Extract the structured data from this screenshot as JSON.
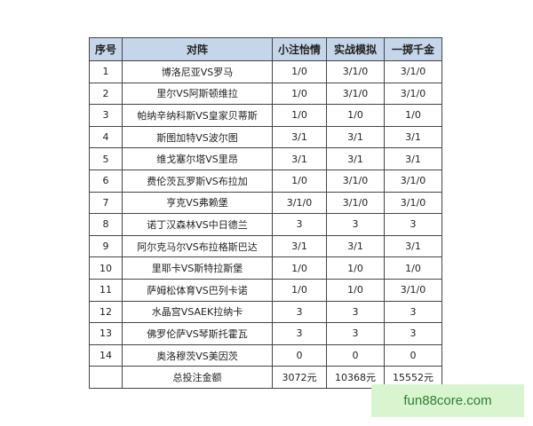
{
  "headers": [
    "序号",
    "对阵",
    "小注怡情",
    "实战模拟",
    "一掷千金"
  ],
  "rows": [
    [
      "1",
      "博洛尼亚VS罗马",
      "1/0",
      "3/1/0",
      "3/1/0"
    ],
    [
      "2",
      "里尔VS阿斯顿维拉",
      "1/0",
      "3/1/0",
      "3/1/0"
    ],
    [
      "3",
      "帕纳辛纳科斯VS皇家贝蒂斯",
      "1/0",
      "1/0",
      "1/0"
    ],
    [
      "4",
      "斯图加特VS波尔图",
      "3/1",
      "3/1",
      "3/1"
    ],
    [
      "5",
      "维戈塞尔塔VS里昂",
      "3/1",
      "3/1",
      "3/1"
    ],
    [
      "6",
      "费伦茨瓦罗斯VS布拉加",
      "1/0",
      "3/1/0",
      "3/1/0"
    ],
    [
      "7",
      "亨克VS弗赖堡",
      "3/1/0",
      "3/1/0",
      "3/1/0"
    ],
    [
      "8",
      "诺丁汉森林VS中日德兰",
      "3",
      "3",
      "3"
    ],
    [
      "9",
      "阿尔克马尔VS布拉格斯巴达",
      "3/1",
      "3/1",
      "3/1"
    ],
    [
      "10",
      "里耶卡VS斯特拉斯堡",
      "1/0",
      "1/0",
      "1/0"
    ],
    [
      "11",
      "萨姆松体育VS巴列卡诺",
      "1/0",
      "1/0",
      "3/1/0"
    ],
    [
      "12",
      "水晶宫VSAEK拉纳卡",
      "3",
      "3",
      "3"
    ],
    [
      "13",
      "佛罗伦萨VS琴斯托霍瓦",
      "3",
      "3",
      "3"
    ],
    [
      "14",
      "奥洛穆茨VS美因茨",
      "0",
      "0",
      "0"
    ]
  ],
  "total": [
    "",
    "总投注金额",
    "3072元",
    "10368元",
    "15552元"
  ],
  "watermark": "fun88core.com"
}
